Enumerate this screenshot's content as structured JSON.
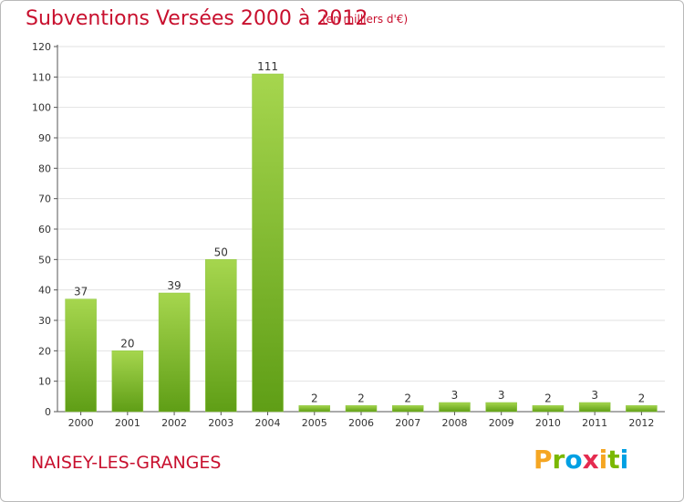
{
  "header": {
    "title": "Subventions Versées 2000 à 2012",
    "subtitle": "(en milliers d'€)"
  },
  "footer": {
    "place": "NAISEY-LES-GRANGES",
    "logo_text": "Proxiti",
    "logo_colors": [
      "#f5a623",
      "#7ab800",
      "#00a0e3",
      "#e52b50",
      "#f5a623",
      "#7ab800",
      "#00a0e3"
    ]
  },
  "chart_data": {
    "type": "bar",
    "categories": [
      "2000",
      "2001",
      "2002",
      "2003",
      "2004",
      "2005",
      "2006",
      "2007",
      "2008",
      "2009",
      "2010",
      "2011",
      "2012"
    ],
    "values": [
      37,
      20,
      39,
      50,
      111,
      2,
      2,
      2,
      3,
      3,
      2,
      3,
      2
    ],
    "ylim": [
      0,
      120
    ],
    "yticks": [
      0,
      10,
      20,
      30,
      40,
      50,
      60,
      70,
      80,
      90,
      100,
      110,
      120
    ],
    "grid": true,
    "bar_color": "#7ab82e",
    "bar_color_light": "#a6d64e"
  }
}
